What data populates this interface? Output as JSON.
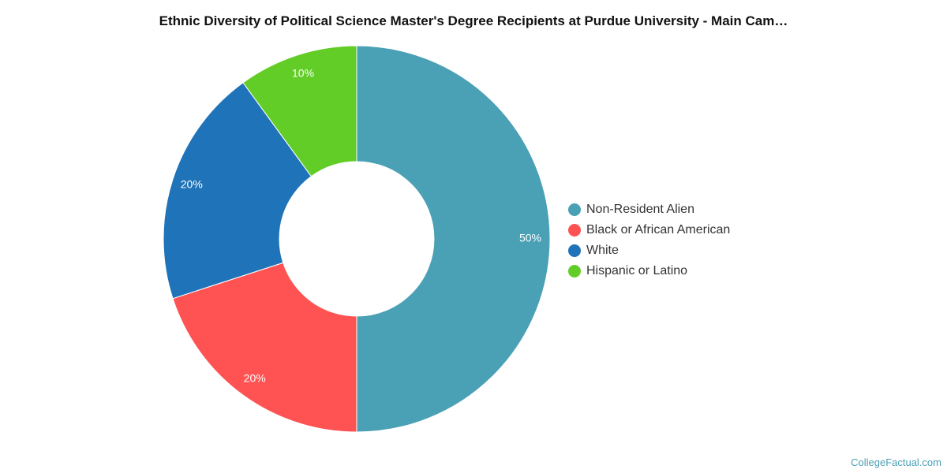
{
  "chart_data": {
    "type": "pie",
    "title": "Ethnic Diversity of Political Science Master's Degree Recipients at Purdue University - Main Cam…",
    "donut": true,
    "legend_position": "right",
    "slices": [
      {
        "label": "Non-Resident Alien",
        "value": 50,
        "display": "50%",
        "color": "#4aa0b5"
      },
      {
        "label": "Black or African American",
        "value": 20,
        "display": "20%",
        "color": "#ff5252"
      },
      {
        "label": "White",
        "value": 20,
        "display": "20%",
        "color": "#1f73b8"
      },
      {
        "label": "Hispanic or Latino",
        "value": 10,
        "display": "10%",
        "color": "#62cd26"
      }
    ]
  },
  "credit": "CollegeFactual.com"
}
